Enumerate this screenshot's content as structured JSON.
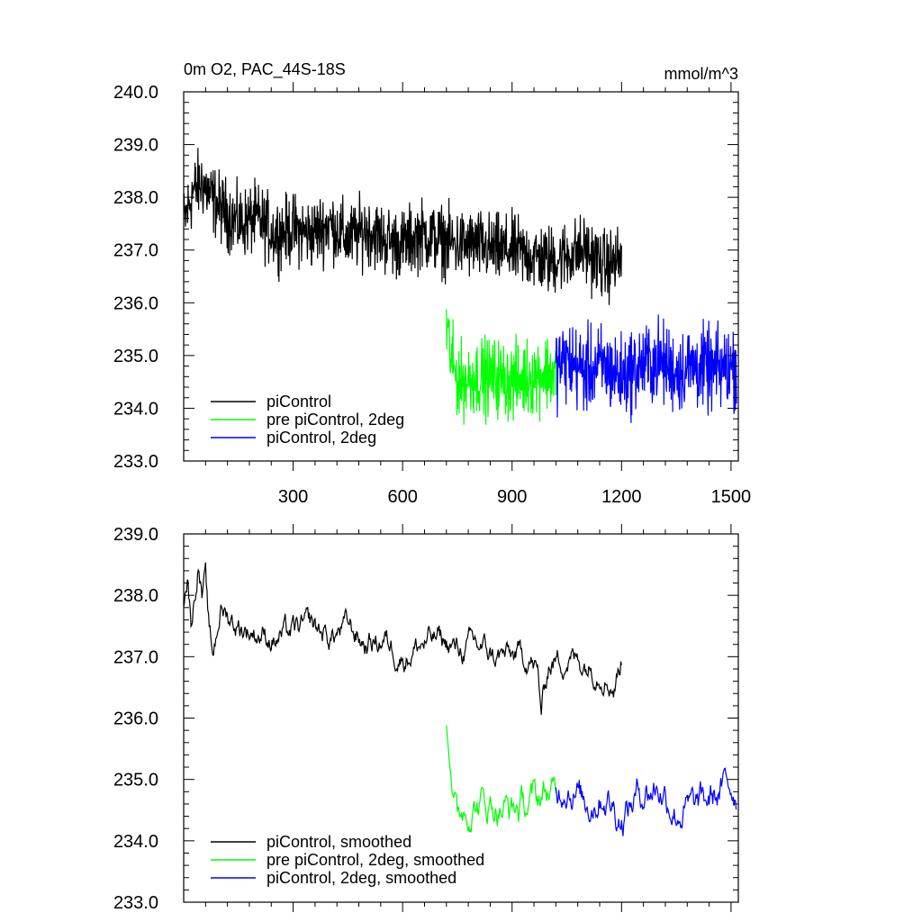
{
  "chart_data": [
    {
      "type": "line",
      "title": "0m O2, PAC_44S-18S",
      "units": "mmol/m^3",
      "xlim": [
        0,
        1520
      ],
      "ylim": [
        233.0,
        240.0
      ],
      "xticks": [
        300,
        600,
        900,
        1200,
        1500
      ],
      "yticks": [
        "233.0",
        "234.0",
        "235.0",
        "236.0",
        "237.0",
        "238.0",
        "239.0",
        "240.0"
      ],
      "grid": false,
      "legend_position": "bottom-left",
      "series": [
        {
          "name": "piControl",
          "color": "#000000",
          "x": [
            0,
            25,
            50,
            75,
            100,
            150,
            200,
            250,
            300,
            350,
            400,
            450,
            500,
            550,
            600,
            650,
            700,
            750,
            800,
            850,
            900,
            950,
            1000,
            1050,
            1100,
            1150,
            1200
          ],
          "y": [
            237.5,
            238.1,
            238.3,
            238.0,
            237.8,
            237.5,
            237.6,
            237.3,
            237.4,
            237.3,
            237.5,
            237.2,
            237.4,
            237.2,
            237.1,
            237.3,
            237.2,
            237.1,
            237.1,
            237.0,
            237.0,
            236.9,
            236.8,
            236.9,
            237.0,
            236.7,
            236.8
          ],
          "amplitude": 0.5
        },
        {
          "name": "pre piControl, 2deg",
          "color": "#00ff00",
          "x": [
            720,
            730,
            740,
            760,
            800,
            850,
            900,
            950,
            1000,
            1020
          ],
          "y": [
            235.6,
            235.1,
            234.7,
            234.5,
            234.6,
            234.6,
            234.5,
            234.6,
            234.7,
            234.6
          ],
          "amplitude": 0.55
        },
        {
          "name": "piControl, 2deg",
          "color": "#0000ff",
          "x": [
            1020,
            1050,
            1100,
            1150,
            1200,
            1250,
            1300,
            1350,
            1400,
            1450,
            1500,
            1515
          ],
          "y": [
            234.8,
            234.9,
            234.7,
            234.8,
            234.6,
            234.8,
            234.9,
            234.7,
            234.8,
            234.7,
            234.8,
            234.8
          ],
          "amplitude": 0.6
        }
      ]
    },
    {
      "type": "line",
      "xlim": [
        0,
        1520
      ],
      "ylim": [
        233.0,
        239.0
      ],
      "yticks": [
        "233.0",
        "234.0",
        "235.0",
        "236.0",
        "237.0",
        "238.0",
        "239.0"
      ],
      "grid": false,
      "legend_position": "bottom-left",
      "series": [
        {
          "name": "piControl, smoothed",
          "color": "#000000",
          "x": [
            0,
            10,
            20,
            30,
            40,
            50,
            60,
            70,
            80,
            100,
            150,
            200,
            250,
            300,
            350,
            400,
            450,
            500,
            550,
            600,
            650,
            700,
            750,
            800,
            850,
            900,
            950,
            970,
            980,
            1000,
            1050,
            1100,
            1150,
            1180,
            1200
          ],
          "y": [
            237.9,
            238.3,
            237.6,
            238.0,
            238.6,
            238.0,
            238.2,
            237.3,
            237.0,
            237.8,
            237.5,
            237.4,
            237.3,
            237.4,
            237.5,
            237.3,
            237.5,
            237.2,
            237.3,
            237.0,
            237.2,
            237.3,
            237.1,
            237.2,
            237.0,
            237.0,
            237.0,
            236.7,
            236.1,
            236.9,
            237.0,
            236.9,
            236.8,
            236.5,
            237.0
          ],
          "amplitude": 0.3
        },
        {
          "name": "pre piControl, 2deg, smoothed",
          "color": "#00ff00",
          "x": [
            720,
            730,
            740,
            750,
            760,
            800,
            850,
            900,
            950,
            1000,
            1020
          ],
          "y": [
            235.8,
            235.5,
            234.8,
            234.3,
            234.5,
            234.6,
            234.6,
            234.5,
            234.6,
            234.8,
            234.7
          ],
          "amplitude": 0.4
        },
        {
          "name": "piControl, 2deg, smoothed",
          "color": "#0000ff",
          "x": [
            1020,
            1050,
            1100,
            1150,
            1200,
            1250,
            1300,
            1350,
            1400,
            1450,
            1500,
            1515
          ],
          "y": [
            234.8,
            235.0,
            234.6,
            234.8,
            234.4,
            234.8,
            234.9,
            234.5,
            234.5,
            234.7,
            234.9,
            234.8
          ],
          "amplitude": 0.4
        }
      ]
    }
  ]
}
